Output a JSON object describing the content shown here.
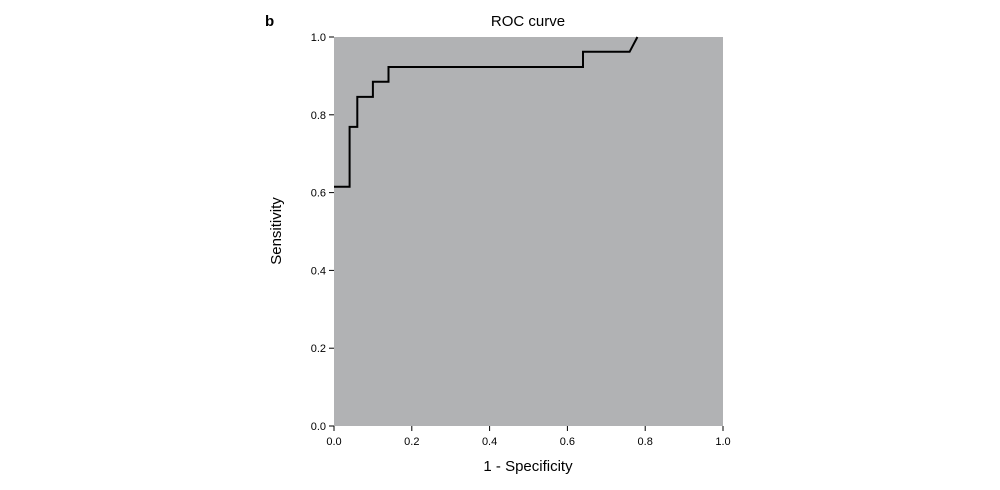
{
  "panel_label": "b",
  "colors": {
    "plot_background": "#b1b2b4",
    "curve": "#000000",
    "axis": "#000000"
  },
  "chart_data": {
    "type": "line",
    "title": "ROC curve",
    "xlabel": "1 - Specificity",
    "ylabel": "Sensitivity",
    "xlim": [
      0,
      1
    ],
    "ylim": [
      0,
      1
    ],
    "xticks": [
      "0.0",
      "0.2",
      "0.4",
      "0.6",
      "0.8",
      "1.0"
    ],
    "yticks": [
      "0.0",
      "0.2",
      "0.4",
      "0.6",
      "0.8",
      "1.0"
    ],
    "grid": false,
    "series": [
      {
        "x": [
          0.0,
          0.04,
          0.04,
          0.06,
          0.06,
          0.1,
          0.1,
          0.14,
          0.14,
          0.64,
          0.64,
          0.76,
          0.78
        ],
        "y": [
          0.615,
          0.615,
          0.769,
          0.769,
          0.846,
          0.846,
          0.885,
          0.885,
          0.923,
          0.923,
          0.962,
          0.962,
          1.0
        ]
      }
    ]
  }
}
